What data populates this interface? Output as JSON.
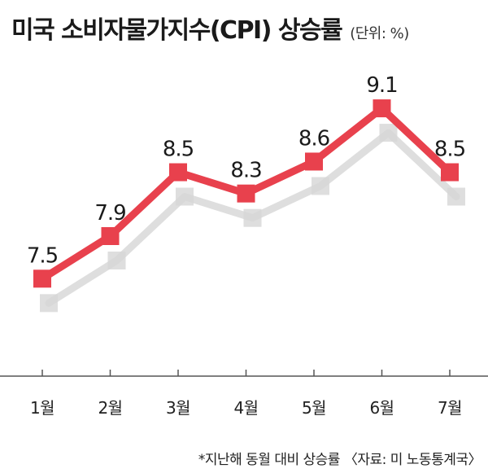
{
  "header": {
    "title": "미국 소비자물가지수(CPI) 상승률",
    "unit": "(단위: %)"
  },
  "footnote": "*지난해 동월 대비 상승률 〈자료: 미 노동통계국〉",
  "colors": {
    "line": "#e8414d",
    "shadow": "#d6d6d6",
    "axis": "#555555"
  },
  "chart_data": {
    "type": "line",
    "categories": [
      "1월",
      "2월",
      "3월",
      "4월",
      "5월",
      "6월",
      "7월"
    ],
    "series": [
      {
        "values": [
          7.5,
          7.9,
          8.5,
          8.3,
          8.6,
          9.1,
          8.5
        ]
      }
    ],
    "value_labels": [
      "7.5",
      "7.9",
      "8.5",
      "8.3",
      "8.6",
      "9.1",
      "8.5"
    ],
    "ylim": [
      6.6,
      9.2
    ],
    "grid": false,
    "legend": "none"
  }
}
